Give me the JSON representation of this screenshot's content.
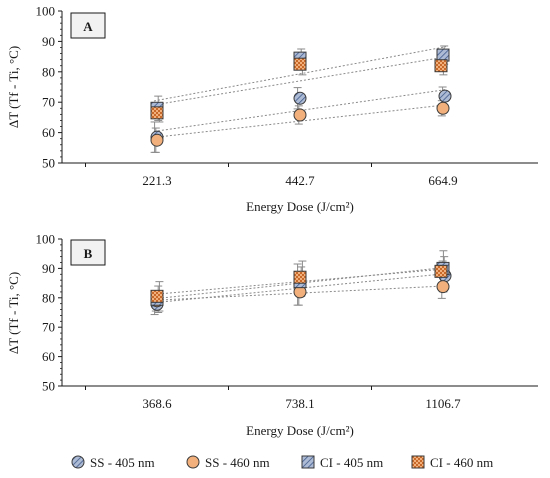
{
  "chart_data": [
    {
      "type": "scatter",
      "panel_label": "A",
      "categories": [
        "221.3",
        "442.7",
        "664.9"
      ],
      "xlabel": "Energy Dose (J/cm²)",
      "ylabel": "ΔT (Tf - Ti, °C)",
      "ylim": [
        50,
        100
      ],
      "yticks": [
        50,
        60,
        70,
        80,
        90,
        100
      ],
      "grid": false,
      "trendlines": true,
      "series": [
        {
          "name": "SS - 405 nm",
          "values": [
            58.5,
            71.3,
            72.0
          ],
          "errors": [
            5.0,
            3.5,
            3.0
          ]
        },
        {
          "name": "SS - 460 nm",
          "values": [
            57.5,
            65.8,
            68.0
          ],
          "errors": [
            4.0,
            3.0,
            2.5
          ]
        },
        {
          "name": "CI - 405 nm",
          "values": [
            68.0,
            84.5,
            85.5
          ],
          "errors": [
            4.0,
            3.0,
            3.0
          ]
        },
        {
          "name": "CI - 460 nm",
          "values": [
            66.5,
            82.5,
            82.0
          ],
          "errors": [
            3.0,
            3.5,
            3.0
          ]
        }
      ]
    },
    {
      "type": "scatter",
      "panel_label": "B",
      "categories": [
        "368.6",
        "738.1",
        "1106.7"
      ],
      "xlabel": "Energy Dose (J/cm²)",
      "ylabel": "ΔT (Tf - Ti, °C)",
      "ylim": [
        50,
        100
      ],
      "yticks": [
        50,
        60,
        70,
        80,
        90,
        100
      ],
      "grid": false,
      "trendlines": true,
      "series": [
        {
          "name": "SS - 405 nm",
          "values": [
            77.8,
            84.5,
            87.5
          ],
          "errors": [
            3.5,
            7.0,
            5.0
          ]
        },
        {
          "name": "SS - 460 nm",
          "values": [
            79.0,
            82.0,
            83.8
          ],
          "errors": [
            3.5,
            4.5,
            4.0
          ]
        },
        {
          "name": "CI - 405 nm",
          "values": [
            79.5,
            85.5,
            90.0
          ],
          "errors": [
            4.5,
            5.0,
            4.0
          ]
        },
        {
          "name": "CI - 460 nm",
          "values": [
            80.5,
            87.0,
            89.0
          ],
          "errors": [
            5.0,
            5.5,
            7.0
          ]
        }
      ]
    }
  ],
  "legend": {
    "placement": "bottom",
    "items": [
      {
        "label": "SS - 405 nm",
        "shape": "circle",
        "fill": "#aebbd4",
        "hatch": true
      },
      {
        "label": "SS - 460 nm",
        "shape": "circle",
        "fill": "#f1b07c",
        "hatch": false
      },
      {
        "label": "CI - 405 nm",
        "shape": "square",
        "fill": "#aebbd4",
        "hatch": true
      },
      {
        "label": "CI - 460 nm",
        "shape": "square",
        "fill": "#f1b07c",
        "hatch": true
      }
    ]
  },
  "colors": {
    "blue_fill": "#aebbd4",
    "blue_hatch": "#3f5a8c",
    "orange_fill": "#f1b07c",
    "orange_hatch": "#c8692a",
    "marker_stroke": "#3a3a3a",
    "trendline": "#8a8a8a",
    "errorbar": "#8a8a8a",
    "axis": "#1a1a1a"
  }
}
